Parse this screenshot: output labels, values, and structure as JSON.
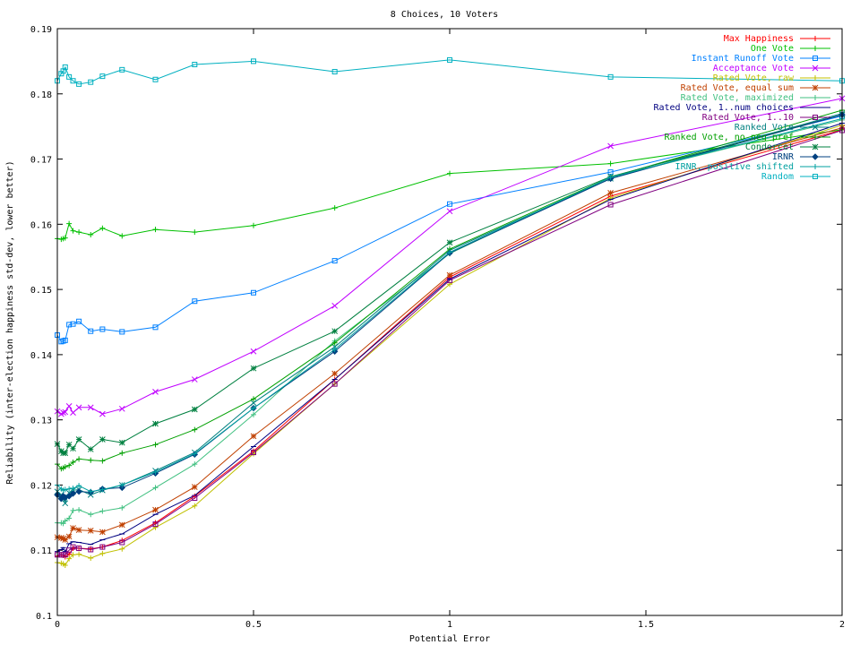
{
  "chart_data": {
    "type": "line",
    "title": "8 Choices, 10 Voters",
    "xlabel": "Potential Error",
    "ylabel": "Reliability (inter-election happiness std-dev, lower better)",
    "xlim": [
      0,
      2
    ],
    "ylim": [
      0.1,
      0.19
    ],
    "grid": false,
    "legend": "top-right",
    "x_ticks": [
      0,
      0.5,
      1,
      1.5,
      2
    ],
    "x_tick_labels": [
      "0",
      "0.5",
      "1",
      "1.5",
      "2"
    ],
    "y_ticks": [
      0.1,
      0.11,
      0.12,
      0.13,
      0.14,
      0.15,
      0.16,
      0.17,
      0.18,
      0.19
    ],
    "y_tick_labels": [
      "0.1",
      "0.11",
      "0.12",
      "0.13",
      "0.14",
      "0.15",
      "0.16",
      "0.17",
      "0.18",
      "0.19"
    ],
    "x": [
      0,
      0.01,
      0.015,
      0.02,
      0.03,
      0.04,
      0.055,
      0.085,
      0.115,
      0.165,
      0.25,
      0.35,
      0.5,
      0.707,
      1.0,
      1.41,
      2.0
    ],
    "series": [
      {
        "name": "Max Happiness",
        "color": "#ff0000",
        "marker": "plus",
        "values": [
          0.1091,
          0.1093,
          0.1092,
          0.109,
          0.1094,
          0.1103,
          0.1103,
          0.1102,
          0.1105,
          0.1115,
          0.1142,
          0.1183,
          0.1252,
          0.1362,
          0.1519,
          0.1643,
          0.1745
        ]
      },
      {
        "name": "One Vote",
        "color": "#00c000",
        "marker": "plus",
        "values": [
          0.1578,
          0.1577,
          0.1578,
          0.1579,
          0.1601,
          0.159,
          0.1588,
          0.1584,
          0.1594,
          0.1582,
          0.1592,
          0.1588,
          0.1598,
          0.1625,
          0.1678,
          0.1693,
          0.1745
        ]
      },
      {
        "name": "Instant Runoff Vote",
        "color": "#0080ff",
        "marker": "square",
        "values": [
          0.143,
          0.142,
          0.1421,
          0.1422,
          0.1446,
          0.1447,
          0.1451,
          0.1436,
          0.1439,
          0.1435,
          0.1442,
          0.1482,
          0.1495,
          0.1544,
          0.1631,
          0.168,
          0.1766
        ]
      },
      {
        "name": "Acceptance Vote",
        "color": "#c000ff",
        "marker": "x",
        "values": [
          0.1313,
          0.1309,
          0.1311,
          0.1312,
          0.1321,
          0.1311,
          0.1319,
          0.1319,
          0.1309,
          0.1317,
          0.1343,
          0.1362,
          0.1405,
          0.1475,
          0.162,
          0.172,
          0.1793
        ]
      },
      {
        "name": "Rated Vote, raw",
        "color": "#c0c000",
        "marker": "plus",
        "values": [
          0.1081,
          0.108,
          0.1079,
          0.1077,
          0.1087,
          0.1093,
          0.1094,
          0.1088,
          0.1095,
          0.1102,
          0.1135,
          0.1168,
          0.1248,
          0.1355,
          0.1508,
          0.164,
          0.1752
        ]
      },
      {
        "name": "Rated Vote, equal sum",
        "color": "#c04000",
        "marker": "star",
        "values": [
          0.112,
          0.1119,
          0.1118,
          0.1116,
          0.1121,
          0.1134,
          0.1131,
          0.113,
          0.1128,
          0.1139,
          0.1162,
          0.1197,
          0.1275,
          0.1371,
          0.1522,
          0.1648,
          0.1748
        ]
      },
      {
        "name": "Rated Vote, maximized",
        "color": "#40c080",
        "marker": "plus",
        "values": [
          0.1142,
          0.1142,
          0.1141,
          0.1145,
          0.1149,
          0.1161,
          0.1162,
          0.1155,
          0.116,
          0.1165,
          0.1196,
          0.1232,
          0.1308,
          0.1421,
          0.1555,
          0.1672,
          0.176
        ]
      },
      {
        "name": "Rated Vote, 1..num choices",
        "color": "#000080",
        "marker": "line",
        "values": [
          0.1098,
          0.1101,
          0.1104,
          0.1098,
          0.111,
          0.1113,
          0.1112,
          0.1109,
          0.1116,
          0.1125,
          0.1155,
          0.1184,
          0.1259,
          0.1362,
          0.1516,
          0.1638,
          0.1755
        ]
      },
      {
        "name": "Rated Vote, 1..10",
        "color": "#800080",
        "marker": "square",
        "values": [
          0.1093,
          0.1093,
          0.1093,
          0.1093,
          0.11,
          0.1105,
          0.1103,
          0.1101,
          0.1105,
          0.1112,
          0.114,
          0.118,
          0.125,
          0.1355,
          0.1514,
          0.163,
          0.1744
        ]
      },
      {
        "name": "Ranked Vote",
        "color": "#008080",
        "marker": "x",
        "values": [
          0.119,
          0.1185,
          0.1179,
          0.1172,
          0.1188,
          0.1192,
          0.1193,
          0.1185,
          0.1192,
          0.12,
          0.1222,
          0.125,
          0.1326,
          0.1412,
          0.156,
          0.167,
          0.177
        ]
      },
      {
        "name": "Ranked Vote, no neg pref",
        "color": "#00a000",
        "marker": "plus",
        "values": [
          0.1232,
          0.1225,
          0.1226,
          0.1228,
          0.123,
          0.1235,
          0.124,
          0.1238,
          0.1237,
          0.1249,
          0.1262,
          0.1285,
          0.1332,
          0.1418,
          0.1562,
          0.1672,
          0.1775
        ]
      },
      {
        "name": "Condorcet",
        "color": "#008040",
        "marker": "star",
        "values": [
          0.1263,
          0.1252,
          0.1249,
          0.1249,
          0.1262,
          0.1256,
          0.127,
          0.1255,
          0.127,
          0.1265,
          0.1294,
          0.1316,
          0.1379,
          0.1436,
          0.1572,
          0.1673,
          0.1768
        ]
      },
      {
        "name": "IRNR",
        "color": "#004080",
        "marker": "diamond",
        "values": [
          0.1185,
          0.1179,
          0.1183,
          0.1181,
          0.1183,
          0.1187,
          0.119,
          0.1189,
          0.1194,
          0.1196,
          0.1218,
          0.1247,
          0.1318,
          0.1405,
          0.1556,
          0.167,
          0.1768
        ]
      },
      {
        "name": "IRNR, positive shifted",
        "color": "#00a0a0",
        "marker": "plus",
        "values": [
          0.12,
          0.1194,
          0.1192,
          0.1193,
          0.1194,
          0.1195,
          0.1199,
          0.119,
          0.1193,
          0.12,
          0.122,
          0.1248,
          0.1318,
          0.1408,
          0.1557,
          0.1672,
          0.1762
        ]
      },
      {
        "name": "Random",
        "color": "#00b0c0",
        "marker": "square",
        "values": [
          0.182,
          0.1831,
          0.1835,
          0.1841,
          0.1826,
          0.182,
          0.1815,
          0.1818,
          0.1827,
          0.1837,
          0.1822,
          0.1845,
          0.185,
          0.1834,
          0.1852,
          0.1826,
          0.182
        ]
      }
    ]
  }
}
